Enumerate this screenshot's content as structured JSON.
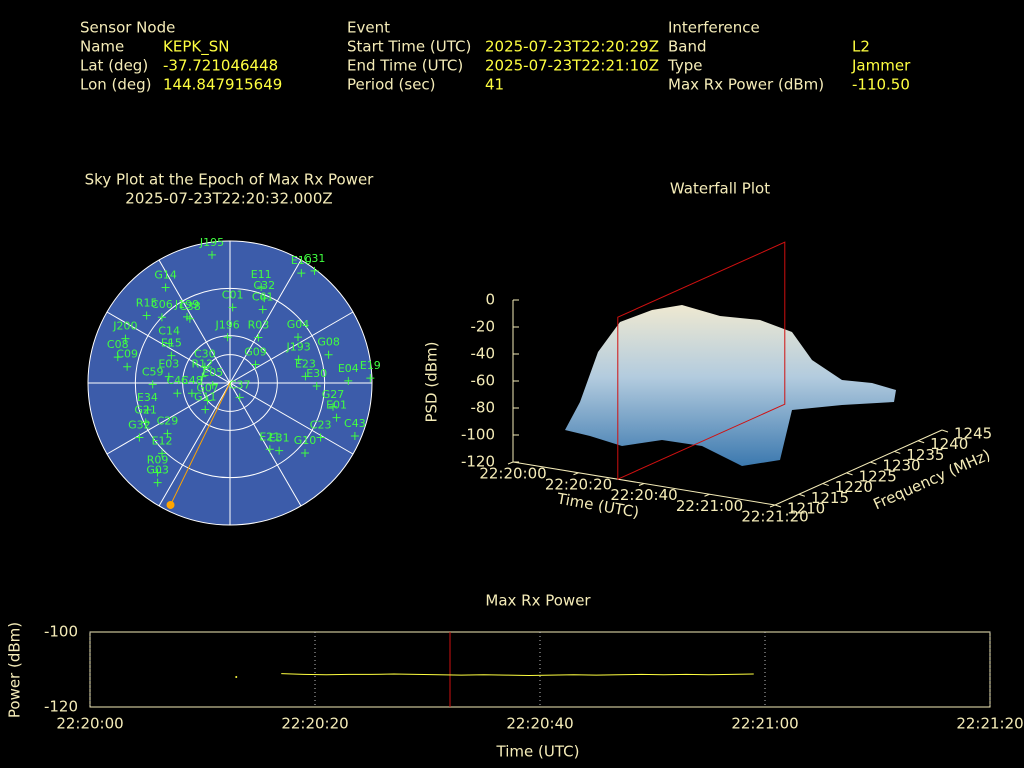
{
  "header": {
    "columns": [
      {
        "title": "Sensor Node",
        "fields": [
          {
            "label": "Name",
            "value": "KEPK_SN"
          },
          {
            "label": "Lat (deg)",
            "value": -37.721046448
          },
          {
            "label": "Lon (deg)",
            "value": 144.847915649
          }
        ]
      },
      {
        "title": "Event",
        "fields": [
          {
            "label": "Start Time (UTC)",
            "value": "2025-07-23T22:20:29Z"
          },
          {
            "label": "End Time (UTC)",
            "value": "2025-07-23T22:21:10Z"
          },
          {
            "label": "Period (sec)",
            "value": 41
          }
        ]
      },
      {
        "title": "Interference",
        "fields": [
          {
            "label": "Band",
            "value": "L2"
          },
          {
            "label": "Type",
            "value": "Jammer"
          },
          {
            "label": "Max Rx Power (dBm)",
            "value": "-110.50"
          }
        ]
      }
    ]
  },
  "sky_plot": {
    "title": "Sky Plot at the Epoch of Max Rx Power",
    "subtitle": "2025-07-23T22:20:32.000Z",
    "satellites": [
      {
        "name": "J195",
        "az": 352,
        "el": 8
      },
      {
        "name": "G14",
        "az": 326,
        "el": 17
      },
      {
        "name": "E11",
        "az": 18,
        "el": 26
      },
      {
        "name": "E10",
        "az": 33,
        "el": 7
      },
      {
        "name": "C31",
        "az": 37,
        "el": 1
      },
      {
        "name": "C32",
        "az": 22,
        "el": 32
      },
      {
        "name": "C61",
        "az": 24,
        "el": 39
      },
      {
        "name": "C01",
        "az": 2,
        "el": 42
      },
      {
        "name": "J199",
        "az": 327,
        "el": 40
      },
      {
        "name": "R15",
        "az": 309,
        "el": 22
      },
      {
        "name": "C06",
        "az": 314,
        "el": 30
      },
      {
        "name": "C38",
        "az": 328,
        "el": 42
      },
      {
        "name": "J200",
        "az": 293,
        "el": 18
      },
      {
        "name": "C08",
        "az": 283,
        "el": 17
      },
      {
        "name": "C09",
        "az": 279,
        "el": 24
      },
      {
        "name": "C14",
        "az": 303,
        "el": 44
      },
      {
        "name": "E15",
        "az": 295,
        "el": 49
      },
      {
        "name": "J196",
        "az": 357,
        "el": 61
      },
      {
        "name": "R03",
        "az": 32,
        "el": 56
      },
      {
        "name": "G04",
        "az": 56,
        "el": 38
      },
      {
        "name": "J193",
        "az": 71,
        "el": 44
      },
      {
        "name": "G08",
        "az": 74,
        "el": 25
      },
      {
        "name": "G09",
        "az": 54,
        "el": 70
      },
      {
        "name": "C30",
        "az": 303,
        "el": 71
      },
      {
        "name": "R12",
        "az": 283,
        "el": 72
      },
      {
        "name": "E05",
        "az": 264,
        "el": 79
      },
      {
        "name": "E03",
        "az": 276,
        "el": 51
      },
      {
        "name": "C59",
        "az": 269,
        "el": 41
      },
      {
        "name": "C46",
        "az": 259,
        "el": 56
      },
      {
        "name": "C48",
        "az": 255,
        "el": 65
      },
      {
        "name": "G07",
        "az": 232,
        "el": 72
      },
      {
        "name": "G11",
        "az": 223,
        "el": 67
      },
      {
        "name": "C37",
        "az": 146,
        "el": 79
      },
      {
        "name": "E23",
        "az": 85,
        "el": 42
      },
      {
        "name": "E30",
        "az": 92,
        "el": 35
      },
      {
        "name": "E04",
        "az": 89,
        "el": 15
      },
      {
        "name": "E19",
        "az": 88,
        "el": 1
      },
      {
        "name": "G27",
        "az": 103,
        "el": 23
      },
      {
        "name": "E01",
        "az": 108,
        "el": 19
      },
      {
        "name": "E34",
        "az": 252,
        "el": 35
      },
      {
        "name": "G21",
        "az": 245,
        "el": 31
      },
      {
        "name": "C29",
        "az": 231,
        "el": 39
      },
      {
        "name": "G32",
        "az": 239,
        "el": 23
      },
      {
        "name": "E21",
        "az": 149,
        "el": 41
      },
      {
        "name": "E31",
        "az": 144,
        "el": 37
      },
      {
        "name": "C23",
        "az": 121,
        "el": 23
      },
      {
        "name": "C43",
        "az": 113,
        "el": 4
      },
      {
        "name": "G10",
        "az": 133,
        "el": 25
      },
      {
        "name": "E12",
        "az": 224,
        "el": 28
      },
      {
        "name": "R09",
        "az": 219,
        "el": 17
      },
      {
        "name": "G03",
        "az": 216,
        "el": 12
      }
    ],
    "sun": {
      "az": 206,
      "el": 4
    }
  },
  "waterfall": {
    "title": "Waterfall Plot",
    "z_label": "PSD (dBm)",
    "x_label": "Time (UTC)",
    "y_label": "Frequency (MHz)",
    "zticks": [
      0,
      -20,
      -40,
      -60,
      -80,
      -100,
      -120
    ],
    "xticks": [
      "22:20:00",
      "22:20:20",
      "22:20:40",
      "22:21:00",
      "22:21:20"
    ],
    "yticks": [
      1210,
      1215,
      1220,
      1225,
      1230,
      1235,
      1240,
      1245
    ]
  },
  "chart_data": {
    "type": "line",
    "title": "Max Rx Power",
    "x_label": "Time (UTC)",
    "y_label": "Power (dBm)",
    "color": "#ffff40",
    "x": [
      "22:20:13",
      "22:20:15",
      "22:20:17",
      "22:20:19",
      "22:20:21",
      "22:20:23",
      "22:20:25",
      "22:20:27",
      "22:20:29",
      "22:20:31",
      "22:20:33",
      "22:20:35",
      "22:20:37",
      "22:20:39",
      "22:20:41",
      "22:20:43",
      "22:20:45",
      "22:20:47",
      "22:20:49",
      "22:20:51",
      "22:20:53",
      "22:20:55",
      "22:20:57",
      "22:20:59"
    ],
    "values": [
      -112,
      null,
      -111.1,
      -111.3,
      -111.4,
      -111.3,
      -111.3,
      -111.2,
      -111.3,
      -111.4,
      -111.5,
      -111.4,
      -111.5,
      -111.6,
      -111.5,
      -111.4,
      -111.5,
      -111.4,
      -111.3,
      -111.4,
      -111.3,
      -111.4,
      -111.3,
      -111.2
    ],
    "xlim": [
      "22:20:00",
      "22:21:20"
    ],
    "xticks": [
      "22:20:00",
      "22:20:20",
      "22:20:40",
      "22:21:00",
      "22:21:20"
    ],
    "ylim": [
      -120,
      -100
    ],
    "yticks": [
      -120,
      -100
    ],
    "grid": true
  }
}
